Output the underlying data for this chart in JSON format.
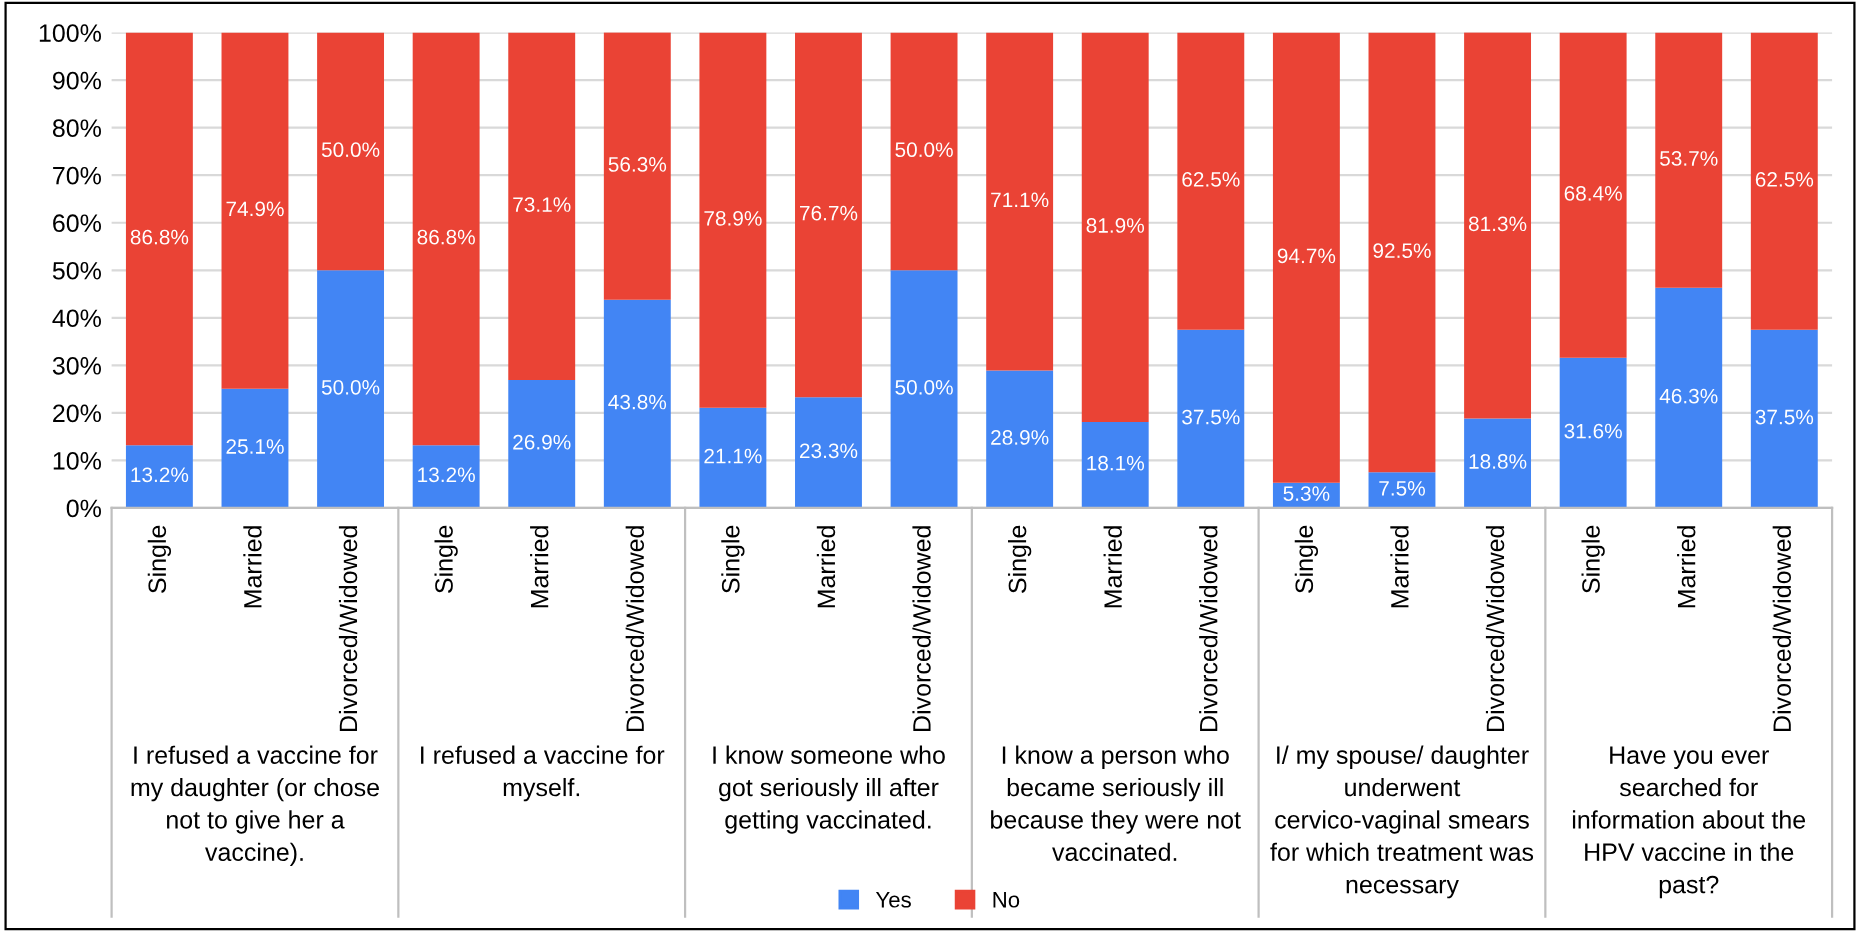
{
  "chart_data": {
    "type": "bar",
    "stacked": true,
    "categories": [
      "Single",
      "Married",
      "Divorced/Widowed",
      "Single",
      "Married",
      "Divorced/Widowed",
      "Single",
      "Married",
      "Divorced/Widowed",
      "Single",
      "Married",
      "Divorced/Widowed",
      "Single",
      "Married",
      "Divorced/Widowed",
      "Single",
      "Married",
      "Divorced/Widowed"
    ],
    "series": [
      {
        "name": "Yes",
        "color": "#4285f4",
        "values": [
          13.2,
          25.1,
          50.0,
          13.2,
          26.9,
          43.8,
          21.1,
          23.3,
          50.0,
          28.9,
          18.1,
          37.5,
          5.3,
          7.5,
          18.8,
          31.6,
          46.3,
          37.5
        ],
        "value_labels": [
          "13.2%",
          "25.1%",
          "50.0%",
          "13.2%",
          "26.9%",
          "43.8%",
          "21.1%",
          "23.3%",
          "50.0%",
          "28.9%",
          "18.1%",
          "37.5%",
          "5.3%",
          "7.5%",
          "18.8%",
          "31.6%",
          "46.3%",
          "37.5%"
        ]
      },
      {
        "name": "No",
        "color": "#ea4335",
        "values": [
          86.8,
          74.9,
          50.0,
          86.8,
          73.1,
          56.3,
          78.9,
          76.7,
          50.0,
          71.1,
          81.9,
          62.5,
          94.7,
          92.5,
          81.3,
          68.4,
          53.7,
          62.5
        ],
        "value_labels": [
          "86.8%",
          "74.9%",
          "50.0%",
          "86.8%",
          "73.1%",
          "56.3%",
          "78.9%",
          "76.7%",
          "50.0%",
          "71.1%",
          "81.9%",
          "62.5%",
          "94.7%",
          "92.5%",
          "81.3%",
          "68.4%",
          "53.7%",
          "62.5%"
        ]
      }
    ],
    "ylim": [
      0,
      100
    ],
    "yticks": [
      {
        "value": 0,
        "label": "0%"
      },
      {
        "value": 10,
        "label": "10%"
      },
      {
        "value": 20,
        "label": "20%"
      },
      {
        "value": 30,
        "label": "30%"
      },
      {
        "value": 40,
        "label": "40%"
      },
      {
        "value": 50,
        "label": "50%"
      },
      {
        "value": 60,
        "label": "60%"
      },
      {
        "value": 70,
        "label": "70%"
      },
      {
        "value": 80,
        "label": "80%"
      },
      {
        "value": 90,
        "label": "90%"
      },
      {
        "value": 100,
        "label": "100%"
      }
    ],
    "grid": "y",
    "legend": "bottom",
    "annotations": [
      "I refused a vaccine for my daughter (or chose not to give her a vaccine).",
      "I refused a vaccine for myself.",
      "I know someone who got seriously ill after getting vaccinated.",
      "I know a person who became seriously ill because they were not vaccinated.",
      "I/ my spouse/ daughter underwent cervico-vaginal smears for which treatment was necessary",
      "Have you ever searched for information about the HPV vaccine in the past?"
    ]
  }
}
